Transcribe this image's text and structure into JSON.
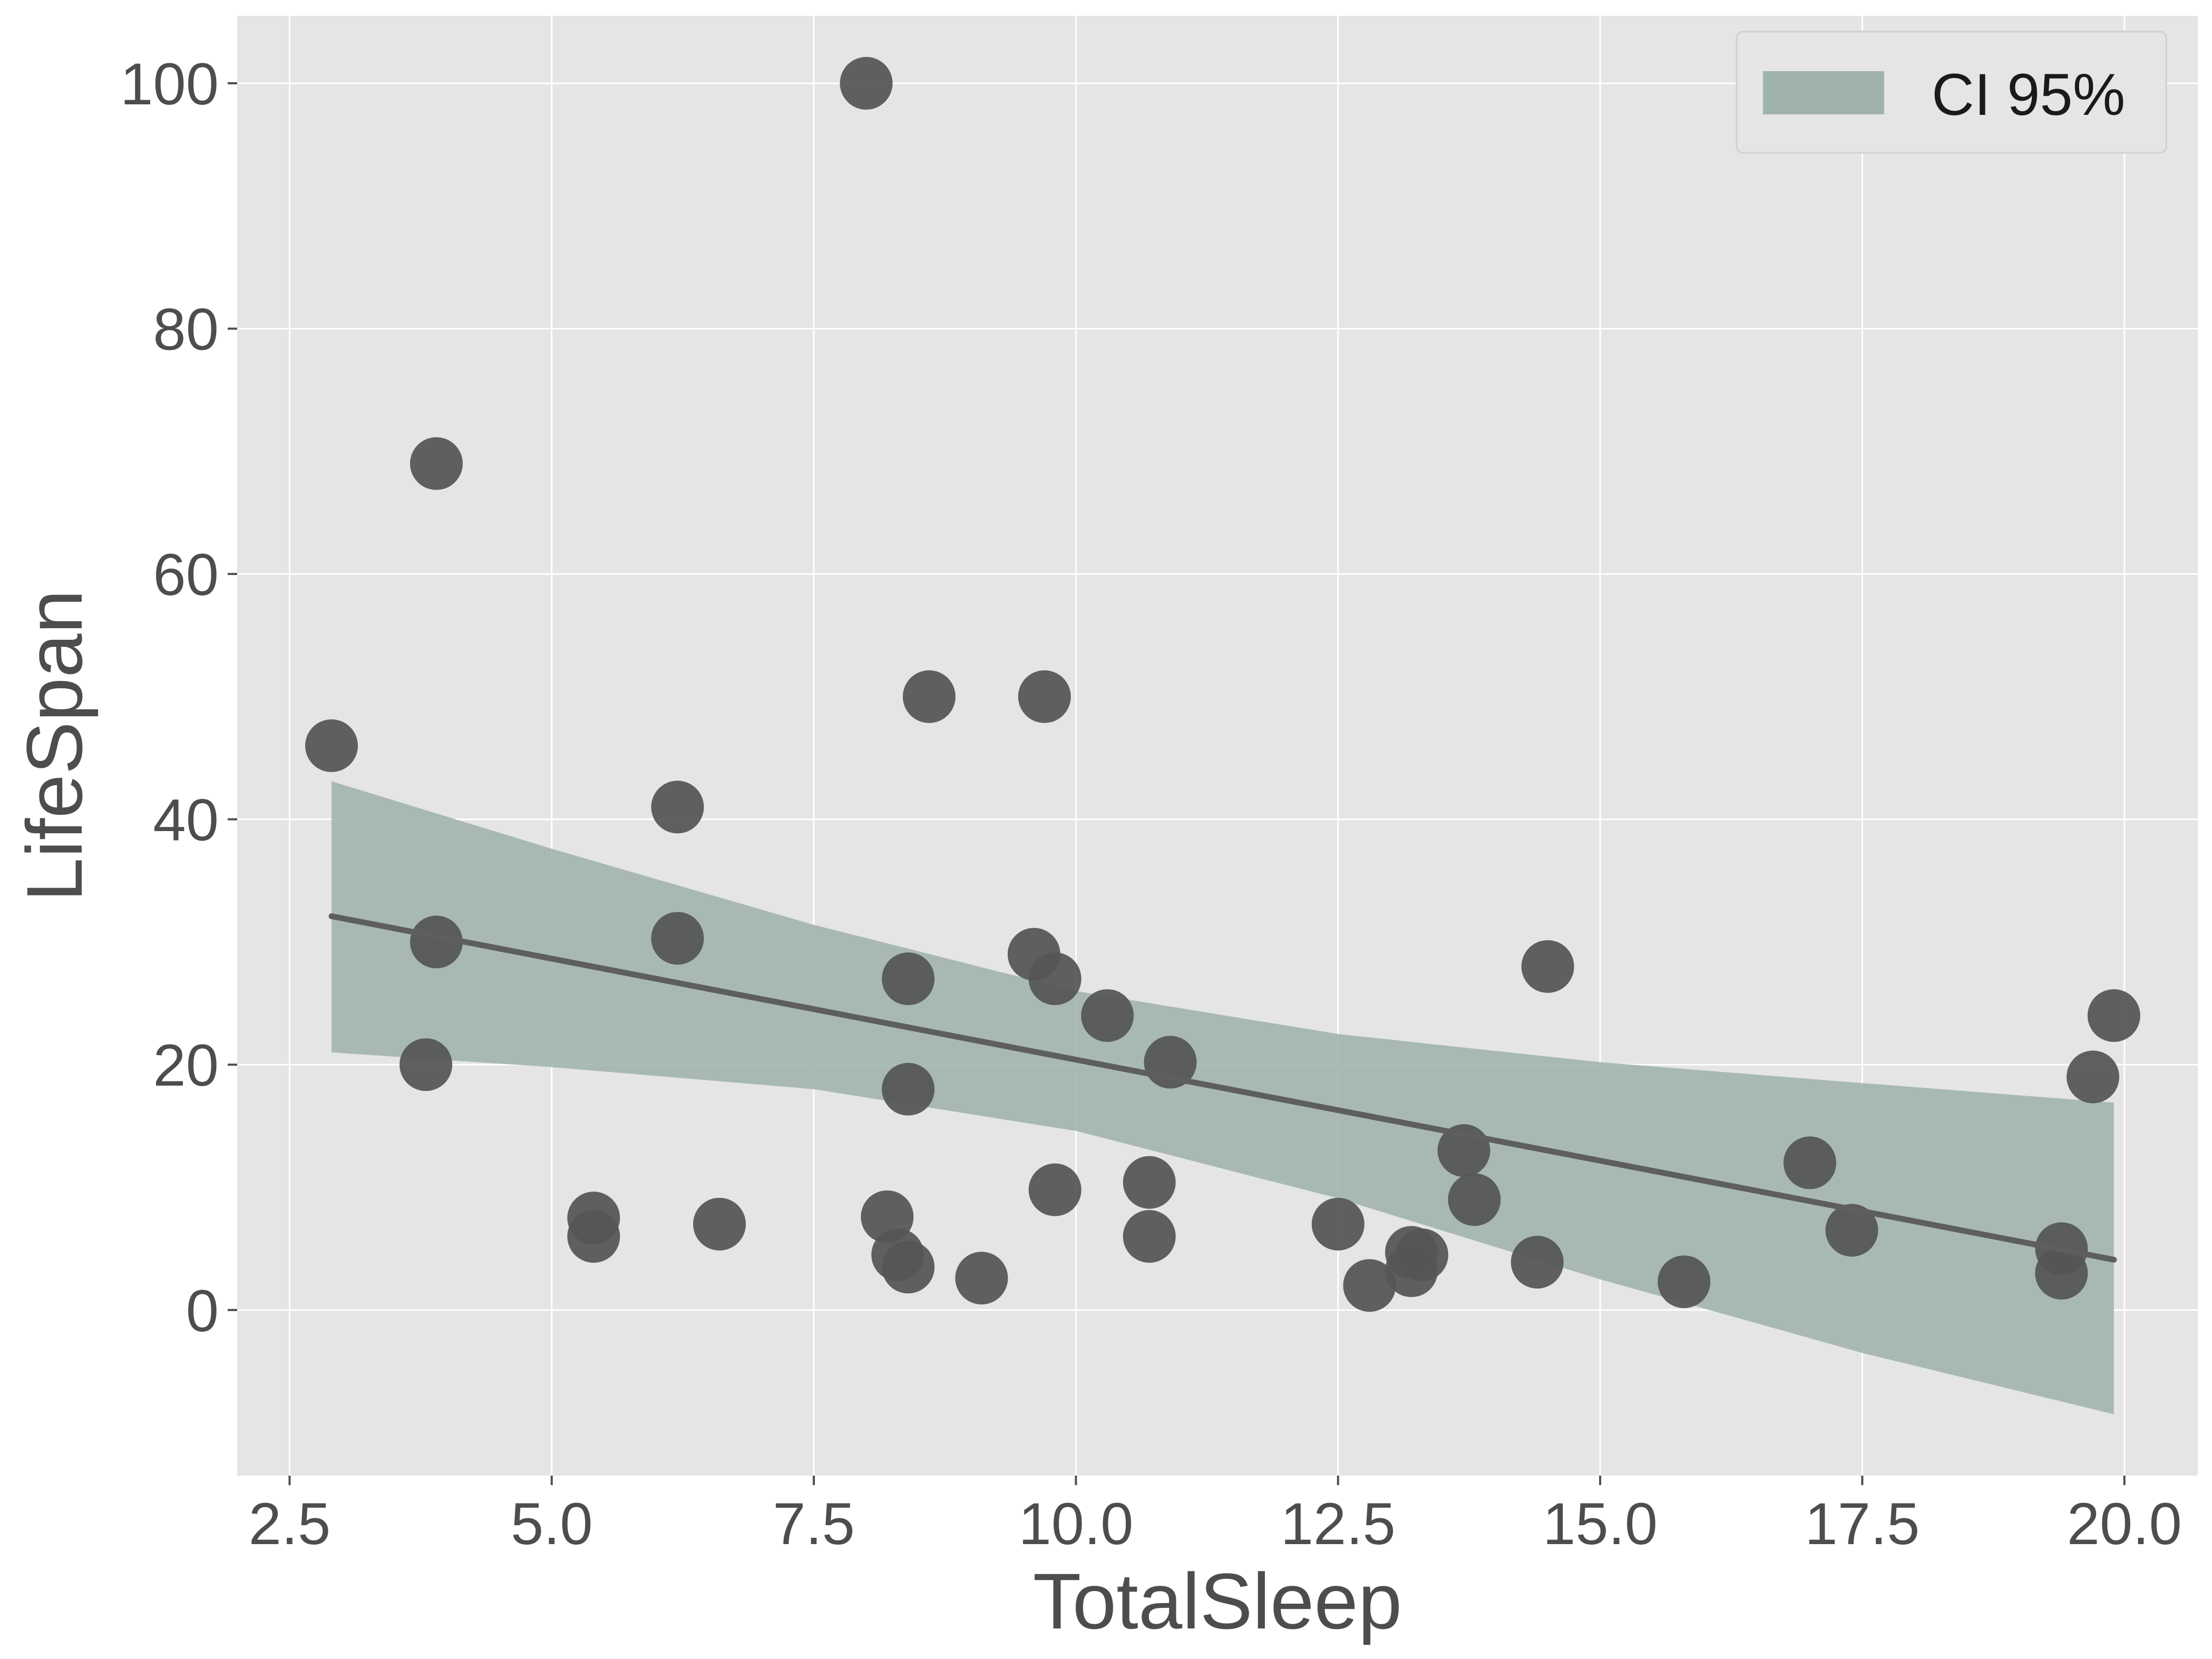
{
  "chart_data": {
    "type": "scatter",
    "xlabel": "TotalSleep",
    "ylabel": "LifeSpan",
    "xlim": [
      2.0,
      20.7
    ],
    "ylim": [
      -13.5,
      105.5
    ],
    "x_ticks": [
      2.5,
      5.0,
      7.5,
      10.0,
      12.5,
      15.0,
      17.5,
      20.0
    ],
    "x_tick_labels": [
      "2.5",
      "5.0",
      "7.5",
      "10.0",
      "12.5",
      "15.0",
      "17.5",
      "20.0"
    ],
    "y_ticks": [
      0,
      20,
      40,
      60,
      80,
      100
    ],
    "y_tick_labels": [
      "0",
      "20",
      "40",
      "60",
      "80",
      "100"
    ],
    "grid": true,
    "legend": {
      "position": "top-right",
      "entries": [
        {
          "label": "CI 95%",
          "color": "#9fb3ac"
        }
      ]
    },
    "colors": {
      "background": "#e5e5e5",
      "grid": "#ffffff",
      "points": "#555555",
      "line": "#5e5e5e",
      "band": "#9fb3ac"
    },
    "points": [
      {
        "x": 2.9,
        "y": 46
      },
      {
        "x": 3.8,
        "y": 20
      },
      {
        "x": 3.9,
        "y": 69
      },
      {
        "x": 3.9,
        "y": 30
      },
      {
        "x": 5.4,
        "y": 7.5
      },
      {
        "x": 5.4,
        "y": 6
      },
      {
        "x": 6.2,
        "y": 41
      },
      {
        "x": 6.2,
        "y": 30.3
      },
      {
        "x": 6.6,
        "y": 7
      },
      {
        "x": 8.0,
        "y": 100
      },
      {
        "x": 8.2,
        "y": 7.6
      },
      {
        "x": 8.3,
        "y": 4.5
      },
      {
        "x": 8.4,
        "y": 3.5
      },
      {
        "x": 8.4,
        "y": 27
      },
      {
        "x": 8.4,
        "y": 18
      },
      {
        "x": 8.6,
        "y": 50
      },
      {
        "x": 9.1,
        "y": 2.6
      },
      {
        "x": 9.6,
        "y": 29
      },
      {
        "x": 9.7,
        "y": 50
      },
      {
        "x": 9.8,
        "y": 27
      },
      {
        "x": 9.8,
        "y": 9.8
      },
      {
        "x": 10.3,
        "y": 24
      },
      {
        "x": 10.7,
        "y": 10.4
      },
      {
        "x": 10.7,
        "y": 6
      },
      {
        "x": 10.9,
        "y": 20.2
      },
      {
        "x": 12.5,
        "y": 7
      },
      {
        "x": 12.8,
        "y": 2
      },
      {
        "x": 13.2,
        "y": 4.7
      },
      {
        "x": 13.2,
        "y": 3.2
      },
      {
        "x": 13.3,
        "y": 4.5
      },
      {
        "x": 13.7,
        "y": 13
      },
      {
        "x": 13.8,
        "y": 9
      },
      {
        "x": 14.4,
        "y": 3.9
      },
      {
        "x": 14.5,
        "y": 28
      },
      {
        "x": 15.8,
        "y": 2.3
      },
      {
        "x": 17.0,
        "y": 12
      },
      {
        "x": 17.4,
        "y": 6.5
      },
      {
        "x": 19.4,
        "y": 5
      },
      {
        "x": 19.4,
        "y": 3
      },
      {
        "x": 19.7,
        "y": 19
      },
      {
        "x": 19.9,
        "y": 24
      }
    ],
    "regression_line": {
      "x": [
        2.9,
        19.9
      ],
      "y": [
        32.1,
        4.1
      ]
    },
    "confidence_band": {
      "x": [
        2.9,
        5.0,
        7.5,
        10.0,
        12.5,
        15.0,
        17.5,
        19.9
      ],
      "upper": [
        43.1,
        37.6,
        31.4,
        26.0,
        22.5,
        20.2,
        18.5,
        16.9
      ],
      "lower": [
        21.0,
        19.8,
        18.0,
        14.6,
        9.1,
        2.5,
        -3.5,
        -8.5
      ]
    }
  }
}
